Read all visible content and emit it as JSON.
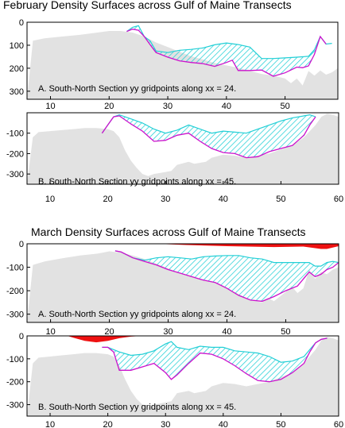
{
  "figure": {
    "title_feb": "February Density Surfaces across Gulf of Maine Transects",
    "title_mar": "March Density Surfaces across Gulf of Maine Transects",
    "colors": {
      "terrain": "#e2e2e2",
      "hatch": "#22cfd6",
      "upper_surface": "#22cfd6",
      "lower_surface": "#cc11cc",
      "outcrop": "#ee1111"
    }
  },
  "chart_data": [
    {
      "type": "area",
      "month": "February",
      "label": "A. South-North Section yy gridpoints along xx = 24.",
      "xlim": [
        6,
        59
      ],
      "ylim": [
        335,
        0
      ],
      "ylim_neg": false,
      "xticks": [
        10,
        20,
        30,
        40,
        50
      ],
      "yticks": [
        0,
        100,
        200,
        300
      ],
      "bathymetry": [
        [
          6,
          335
        ],
        [
          7,
          80
        ],
        [
          9,
          70
        ],
        [
          12,
          62
        ],
        [
          15,
          55
        ],
        [
          18,
          45
        ],
        [
          20,
          38
        ],
        [
          22,
          38
        ],
        [
          24,
          45
        ],
        [
          26,
          62
        ],
        [
          28,
          88
        ],
        [
          30,
          108
        ],
        [
          32,
          128
        ],
        [
          34,
          148
        ],
        [
          36,
          162
        ],
        [
          38,
          177
        ],
        [
          40,
          188
        ],
        [
          42,
          198
        ],
        [
          44,
          212
        ],
        [
          46,
          225
        ],
        [
          48,
          232
        ],
        [
          50,
          245
        ],
        [
          51,
          265
        ],
        [
          52,
          245
        ],
        [
          53,
          275
        ],
        [
          54,
          212
        ],
        [
          55,
          232
        ],
        [
          56,
          210
        ],
        [
          57,
          228
        ],
        [
          58,
          218
        ],
        [
          59,
          200
        ]
      ],
      "upper_surface": [
        [
          23,
          40
        ],
        [
          24,
          22
        ],
        [
          25,
          15
        ],
        [
          26,
          62
        ],
        [
          27,
          82
        ],
        [
          28,
          125
        ],
        [
          30,
          132
        ],
        [
          32,
          122
        ],
        [
          34,
          118
        ],
        [
          36,
          112
        ],
        [
          38,
          98
        ],
        [
          40,
          90
        ],
        [
          42,
          97
        ],
        [
          44,
          108
        ],
        [
          46,
          158
        ],
        [
          48,
          158
        ],
        [
          50,
          155
        ],
        [
          52,
          152
        ],
        [
          54,
          148
        ],
        [
          55,
          120
        ],
        [
          56,
          62
        ],
        [
          57,
          95
        ],
        [
          58,
          92
        ]
      ],
      "lower_surface": [
        [
          23,
          40
        ],
        [
          24,
          30
        ],
        [
          25,
          35
        ],
        [
          26,
          62
        ],
        [
          27,
          98
        ],
        [
          28,
          132
        ],
        [
          30,
          152
        ],
        [
          32,
          168
        ],
        [
          34,
          175
        ],
        [
          36,
          180
        ],
        [
          38,
          192
        ],
        [
          40,
          175
        ],
        [
          41,
          165
        ],
        [
          42,
          210
        ],
        [
          44,
          210
        ],
        [
          46,
          208
        ],
        [
          48,
          235
        ],
        [
          50,
          220
        ],
        [
          52,
          195
        ],
        [
          53,
          198
        ],
        [
          54,
          190
        ],
        [
          55,
          140
        ],
        [
          56,
          62
        ],
        [
          57,
          95
        ]
      ]
    },
    {
      "type": "area",
      "month": "February",
      "label": "B. South-North Section yy gridpoints along xx = 45.",
      "xlim": [
        6,
        60
      ],
      "ylim": [
        -350,
        0
      ],
      "ylim_neg": true,
      "xticks": [
        10,
        20,
        30,
        40,
        50,
        60
      ],
      "yticks": [
        -100,
        -200,
        -300
      ],
      "bathymetry": [
        [
          6,
          -350
        ],
        [
          7,
          -120
        ],
        [
          8,
          -95
        ],
        [
          10,
          -90
        ],
        [
          12,
          -85
        ],
        [
          14,
          -80
        ],
        [
          16,
          -75
        ],
        [
          18,
          -75
        ],
        [
          20,
          -80
        ],
        [
          21,
          -90
        ],
        [
          22,
          -120
        ],
        [
          23,
          -185
        ],
        [
          24,
          -235
        ],
        [
          25,
          -270
        ],
        [
          26,
          -300
        ],
        [
          27,
          -310
        ],
        [
          28,
          -300
        ],
        [
          30,
          -290
        ],
        [
          31,
          -285
        ],
        [
          32,
          -255
        ],
        [
          34,
          -240
        ],
        [
          35,
          -250
        ],
        [
          36,
          -245
        ],
        [
          37,
          -240
        ],
        [
          38,
          -220
        ],
        [
          40,
          -205
        ],
        [
          42,
          -210
        ],
        [
          44,
          -220
        ],
        [
          46,
          -210
        ],
        [
          48,
          -200
        ],
        [
          50,
          -180
        ],
        [
          52,
          -160
        ],
        [
          54,
          -120
        ],
        [
          56,
          -60
        ],
        [
          57,
          -20
        ],
        [
          58,
          -5
        ],
        [
          59,
          -10
        ],
        [
          60,
          -20
        ]
      ],
      "upper_surface": [
        [
          19,
          -100
        ],
        [
          20,
          -60
        ],
        [
          21,
          -20
        ],
        [
          22,
          -10
        ],
        [
          24,
          -30
        ],
        [
          26,
          -50
        ],
        [
          28,
          -80
        ],
        [
          30,
          -100
        ],
        [
          32,
          -85
        ],
        [
          34,
          -60
        ],
        [
          36,
          -80
        ],
        [
          38,
          -100
        ],
        [
          40,
          -90
        ],
        [
          42,
          -95
        ],
        [
          44,
          -100
        ],
        [
          46,
          -80
        ],
        [
          48,
          -60
        ],
        [
          50,
          -40
        ],
        [
          52,
          -25
        ],
        [
          54,
          -15
        ],
        [
          55,
          -10
        ],
        [
          56,
          -20
        ]
      ],
      "lower_surface": [
        [
          19,
          -100
        ],
        [
          20,
          -60
        ],
        [
          21,
          -20
        ],
        [
          22,
          -15
        ],
        [
          24,
          -55
        ],
        [
          26,
          -90
        ],
        [
          28,
          -140
        ],
        [
          30,
          -135
        ],
        [
          32,
          -110
        ],
        [
          34,
          -100
        ],
        [
          36,
          -140
        ],
        [
          38,
          -175
        ],
        [
          40,
          -195
        ],
        [
          42,
          -200
        ],
        [
          44,
          -220
        ],
        [
          46,
          -215
        ],
        [
          48,
          -190
        ],
        [
          50,
          -175
        ],
        [
          52,
          -160
        ],
        [
          54,
          -110
        ],
        [
          55,
          -60
        ],
        [
          56,
          -20
        ]
      ]
    },
    {
      "type": "area",
      "month": "March",
      "label": "A. South-North Section yy gridpoints along xx = 24.",
      "xlim": [
        6,
        59
      ],
      "ylim": [
        -335,
        0
      ],
      "ylim_neg": true,
      "xticks": [
        10,
        20,
        30,
        40,
        50
      ],
      "yticks": [
        0,
        -100,
        -200,
        -300
      ],
      "bathymetry": [
        [
          6,
          -335
        ],
        [
          7,
          -90
        ],
        [
          9,
          -75
        ],
        [
          12,
          -62
        ],
        [
          15,
          -50
        ],
        [
          18,
          -42
        ],
        [
          20,
          -32
        ],
        [
          22,
          -38
        ],
        [
          24,
          -50
        ],
        [
          26,
          -65
        ],
        [
          28,
          -85
        ],
        [
          30,
          -105
        ],
        [
          32,
          -125
        ],
        [
          34,
          -140
        ],
        [
          36,
          -155
        ],
        [
          38,
          -165
        ],
        [
          40,
          -190
        ],
        [
          42,
          -215
        ],
        [
          44,
          -240
        ],
        [
          46,
          -250
        ],
        [
          47,
          -230
        ],
        [
          48,
          -245
        ],
        [
          50,
          -205
        ],
        [
          51,
          -180
        ],
        [
          52,
          -210
        ],
        [
          53,
          -190
        ],
        [
          54,
          -110
        ],
        [
          55,
          -150
        ],
        [
          56,
          -120
        ],
        [
          57,
          -130
        ],
        [
          58,
          -110
        ],
        [
          59,
          -100
        ]
      ],
      "upper_surface": [
        [
          21,
          -30
        ],
        [
          22,
          -35
        ],
        [
          24,
          -60
        ],
        [
          26,
          -70
        ],
        [
          28,
          -60
        ],
        [
          30,
          -55
        ],
        [
          32,
          -60
        ],
        [
          34,
          -65
        ],
        [
          36,
          -55
        ],
        [
          38,
          -52
        ],
        [
          40,
          -50
        ],
        [
          42,
          -50
        ],
        [
          44,
          -60
        ],
        [
          46,
          -65
        ],
        [
          48,
          -80
        ],
        [
          50,
          -80
        ],
        [
          52,
          -80
        ],
        [
          54,
          -80
        ],
        [
          55,
          -95
        ],
        [
          56,
          -95
        ],
        [
          57,
          -80
        ],
        [
          58,
          -75
        ],
        [
          59,
          -80
        ]
      ],
      "lower_surface": [
        [
          21,
          -30
        ],
        [
          22,
          -35
        ],
        [
          24,
          -60
        ],
        [
          26,
          -75
        ],
        [
          28,
          -90
        ],
        [
          30,
          -110
        ],
        [
          32,
          -125
        ],
        [
          34,
          -140
        ],
        [
          36,
          -155
        ],
        [
          38,
          -165
        ],
        [
          40,
          -190
        ],
        [
          42,
          -220
        ],
        [
          44,
          -240
        ],
        [
          46,
          -245
        ],
        [
          48,
          -225
        ],
        [
          50,
          -200
        ],
        [
          52,
          -180
        ],
        [
          54,
          -120
        ],
        [
          55,
          -140
        ],
        [
          56,
          -130
        ],
        [
          57,
          -110
        ],
        [
          58,
          -100
        ],
        [
          59,
          -80
        ]
      ],
      "outcrop": [
        [
          28,
          0
        ],
        [
          33,
          -5
        ],
        [
          40,
          -10
        ],
        [
          48,
          -14
        ],
        [
          53,
          -12
        ],
        [
          56,
          -22
        ],
        [
          57,
          -22
        ],
        [
          59,
          -10
        ],
        [
          59,
          0
        ]
      ]
    },
    {
      "type": "area",
      "month": "March",
      "label": "B. South-North Section yy gridpoints along xx = 45.",
      "xlim": [
        6,
        60
      ],
      "ylim": [
        -350,
        0
      ],
      "ylim_neg": true,
      "xticks": [
        10,
        20,
        30,
        40,
        50,
        60
      ],
      "yticks": [
        0,
        -100,
        -200,
        -300
      ],
      "bathymetry": [
        [
          6,
          -350
        ],
        [
          7,
          -120
        ],
        [
          8,
          -95
        ],
        [
          10,
          -90
        ],
        [
          12,
          -85
        ],
        [
          14,
          -80
        ],
        [
          16,
          -75
        ],
        [
          18,
          -75
        ],
        [
          20,
          -80
        ],
        [
          21,
          -90
        ],
        [
          22,
          -130
        ],
        [
          23,
          -190
        ],
        [
          24,
          -240
        ],
        [
          25,
          -275
        ],
        [
          26,
          -300
        ],
        [
          27,
          -310
        ],
        [
          28,
          -300
        ],
        [
          30,
          -290
        ],
        [
          31,
          -285
        ],
        [
          32,
          -250
        ],
        [
          34,
          -240
        ],
        [
          35,
          -250
        ],
        [
          36,
          -245
        ],
        [
          37,
          -240
        ],
        [
          38,
          -220
        ],
        [
          40,
          -205
        ],
        [
          42,
          -210
        ],
        [
          44,
          -220
        ],
        [
          46,
          -210
        ],
        [
          48,
          -200
        ],
        [
          50,
          -180
        ],
        [
          52,
          -160
        ],
        [
          54,
          -120
        ],
        [
          56,
          -60
        ],
        [
          57,
          -20
        ],
        [
          58,
          -5
        ],
        [
          59,
          -10
        ],
        [
          60,
          -20
        ]
      ],
      "upper_surface": [
        [
          19,
          -50
        ],
        [
          20,
          -50
        ],
        [
          22,
          -70
        ],
        [
          24,
          -85
        ],
        [
          26,
          -80
        ],
        [
          28,
          -65
        ],
        [
          29,
          -50
        ],
        [
          30,
          -35
        ],
        [
          31,
          -25
        ],
        [
          32,
          -50
        ],
        [
          34,
          -60
        ],
        [
          36,
          -45
        ],
        [
          38,
          -50
        ],
        [
          40,
          -50
        ],
        [
          42,
          -65
        ],
        [
          44,
          -70
        ],
        [
          46,
          -75
        ],
        [
          48,
          -90
        ],
        [
          50,
          -115
        ],
        [
          52,
          -110
        ],
        [
          54,
          -90
        ],
        [
          55,
          -60
        ],
        [
          56,
          -30
        ],
        [
          57,
          -15
        ],
        [
          58,
          -10
        ]
      ],
      "lower_surface": [
        [
          19,
          -50
        ],
        [
          20,
          -50
        ],
        [
          21,
          -70
        ],
        [
          22,
          -150
        ],
        [
          24,
          -150
        ],
        [
          26,
          -135
        ],
        [
          28,
          -120
        ],
        [
          30,
          -160
        ],
        [
          31,
          -190
        ],
        [
          32,
          -170
        ],
        [
          34,
          -120
        ],
        [
          36,
          -75
        ],
        [
          38,
          -80
        ],
        [
          40,
          -100
        ],
        [
          42,
          -130
        ],
        [
          44,
          -165
        ],
        [
          46,
          -195
        ],
        [
          48,
          -200
        ],
        [
          50,
          -190
        ],
        [
          52,
          -160
        ],
        [
          54,
          -120
        ],
        [
          55,
          -70
        ],
        [
          56,
          -30
        ],
        [
          57,
          -15
        ],
        [
          58,
          -10
        ]
      ],
      "outcrop": [
        [
          13,
          0
        ],
        [
          14,
          -8
        ],
        [
          16,
          -22
        ],
        [
          18,
          -28
        ],
        [
          20,
          -22
        ],
        [
          22,
          -10
        ],
        [
          24,
          -3
        ],
        [
          26,
          0
        ]
      ]
    }
  ]
}
